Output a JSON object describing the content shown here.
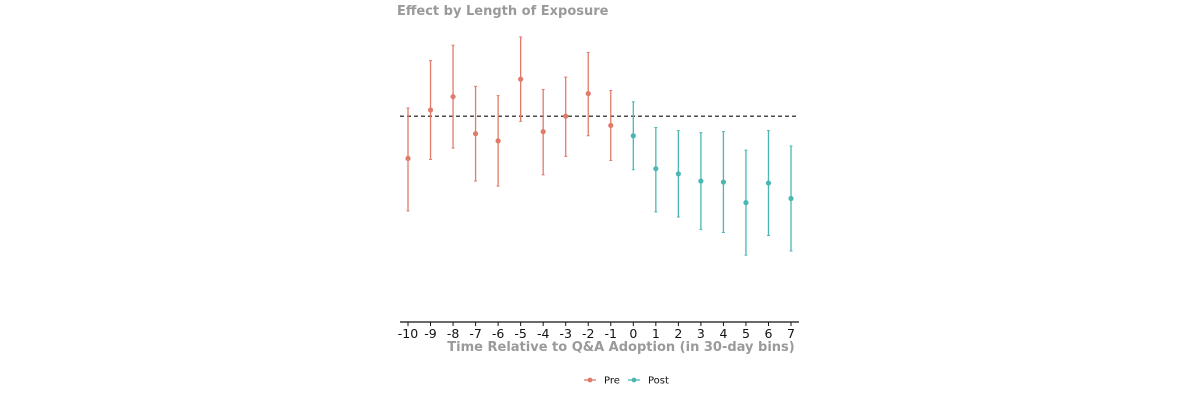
{
  "chart_data": {
    "type": "scatter",
    "title": "Effect by Length of Exposure",
    "xlabel": "Time Relative to Q&A Adoption (in 30-day bins)",
    "ylabel": "",
    "x": [
      -10,
      -9,
      -8,
      -7,
      -6,
      -5,
      -4,
      -3,
      -2,
      -1,
      0,
      1,
      2,
      3,
      4,
      5,
      6,
      7
    ],
    "ylim": [
      -1.0,
      0.38
    ],
    "reference_line": 0,
    "series": [
      {
        "name": "Pre",
        "color": "#e07b6a",
        "points": [
          {
            "x": -10,
            "y": -0.205,
            "lower": -0.46,
            "upper": 0.04
          },
          {
            "x": -9,
            "y": 0.03,
            "lower": -0.21,
            "upper": 0.27
          },
          {
            "x": -8,
            "y": 0.095,
            "lower": -0.155,
            "upper": 0.345
          },
          {
            "x": -7,
            "y": -0.085,
            "lower": -0.315,
            "upper": 0.145
          },
          {
            "x": -6,
            "y": -0.12,
            "lower": -0.34,
            "upper": 0.1
          },
          {
            "x": -5,
            "y": 0.18,
            "lower": -0.025,
            "upper": 0.385
          },
          {
            "x": -4,
            "y": -0.075,
            "lower": -0.285,
            "upper": 0.13
          },
          {
            "x": -3,
            "y": 0.0,
            "lower": -0.195,
            "upper": 0.19
          },
          {
            "x": -2,
            "y": 0.11,
            "lower": -0.095,
            "upper": 0.31
          },
          {
            "x": -1,
            "y": -0.045,
            "lower": -0.215,
            "upper": 0.125
          }
        ]
      },
      {
        "name": "Post",
        "color": "#4bb7b5",
        "points": [
          {
            "x": 0,
            "y": -0.095,
            "lower": -0.26,
            "upper": 0.07
          },
          {
            "x": 1,
            "y": -0.255,
            "lower": -0.465,
            "upper": -0.055
          },
          {
            "x": 2,
            "y": -0.28,
            "lower": -0.49,
            "upper": -0.07
          },
          {
            "x": 3,
            "y": -0.315,
            "lower": -0.55,
            "upper": -0.08
          },
          {
            "x": 4,
            "y": -0.32,
            "lower": -0.565,
            "upper": -0.075
          },
          {
            "x": 5,
            "y": -0.42,
            "lower": -0.675,
            "upper": -0.165
          },
          {
            "x": 6,
            "y": -0.325,
            "lower": -0.58,
            "upper": -0.07
          },
          {
            "x": 7,
            "y": -0.4,
            "lower": -0.655,
            "upper": -0.145
          }
        ]
      }
    ],
    "legend": {
      "placement": "bottom",
      "entries": [
        "Pre",
        "Post"
      ]
    },
    "grid": false
  }
}
